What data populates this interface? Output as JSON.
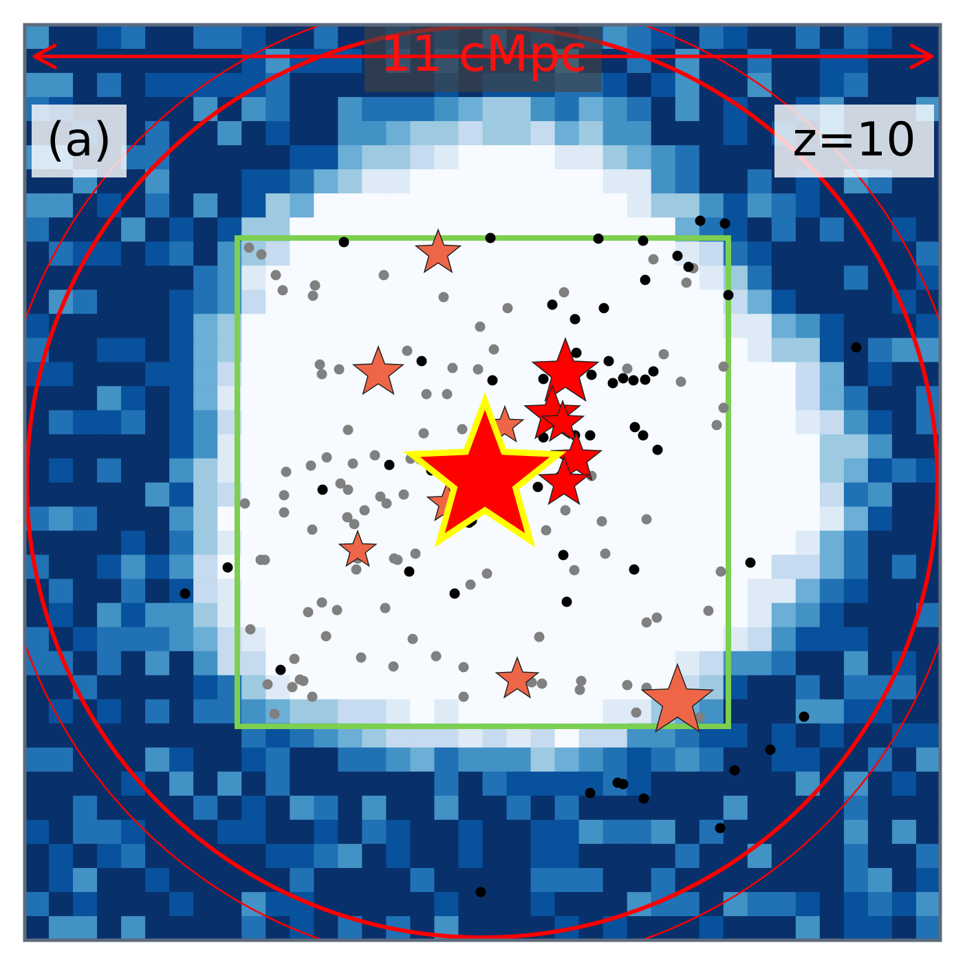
{
  "labels": {
    "scale": "11 cMpc",
    "panel": "(a)",
    "redshift": "z=10"
  },
  "colors": {
    "scale_text": "#ff1010",
    "circle": "#ff0000",
    "green_box": "#7ccf50",
    "halo_gray": "#808080",
    "halo_black": "#000000",
    "star_main": "#ff0000",
    "star_main_outline": "#ffff00",
    "star_secondary": "#ee6647",
    "frame": "#5c6b7d"
  },
  "colormap": [
    "#f7fbff",
    "#deebf7",
    "#c6dbef",
    "#9ecae1",
    "#6baed6",
    "#4292c6",
    "#2171b5",
    "#08519c",
    "#08306b"
  ],
  "markers": {
    "main_star": "big-red-star-icon",
    "secondary_star": "star-icon",
    "halo": "dot-icon"
  }
}
